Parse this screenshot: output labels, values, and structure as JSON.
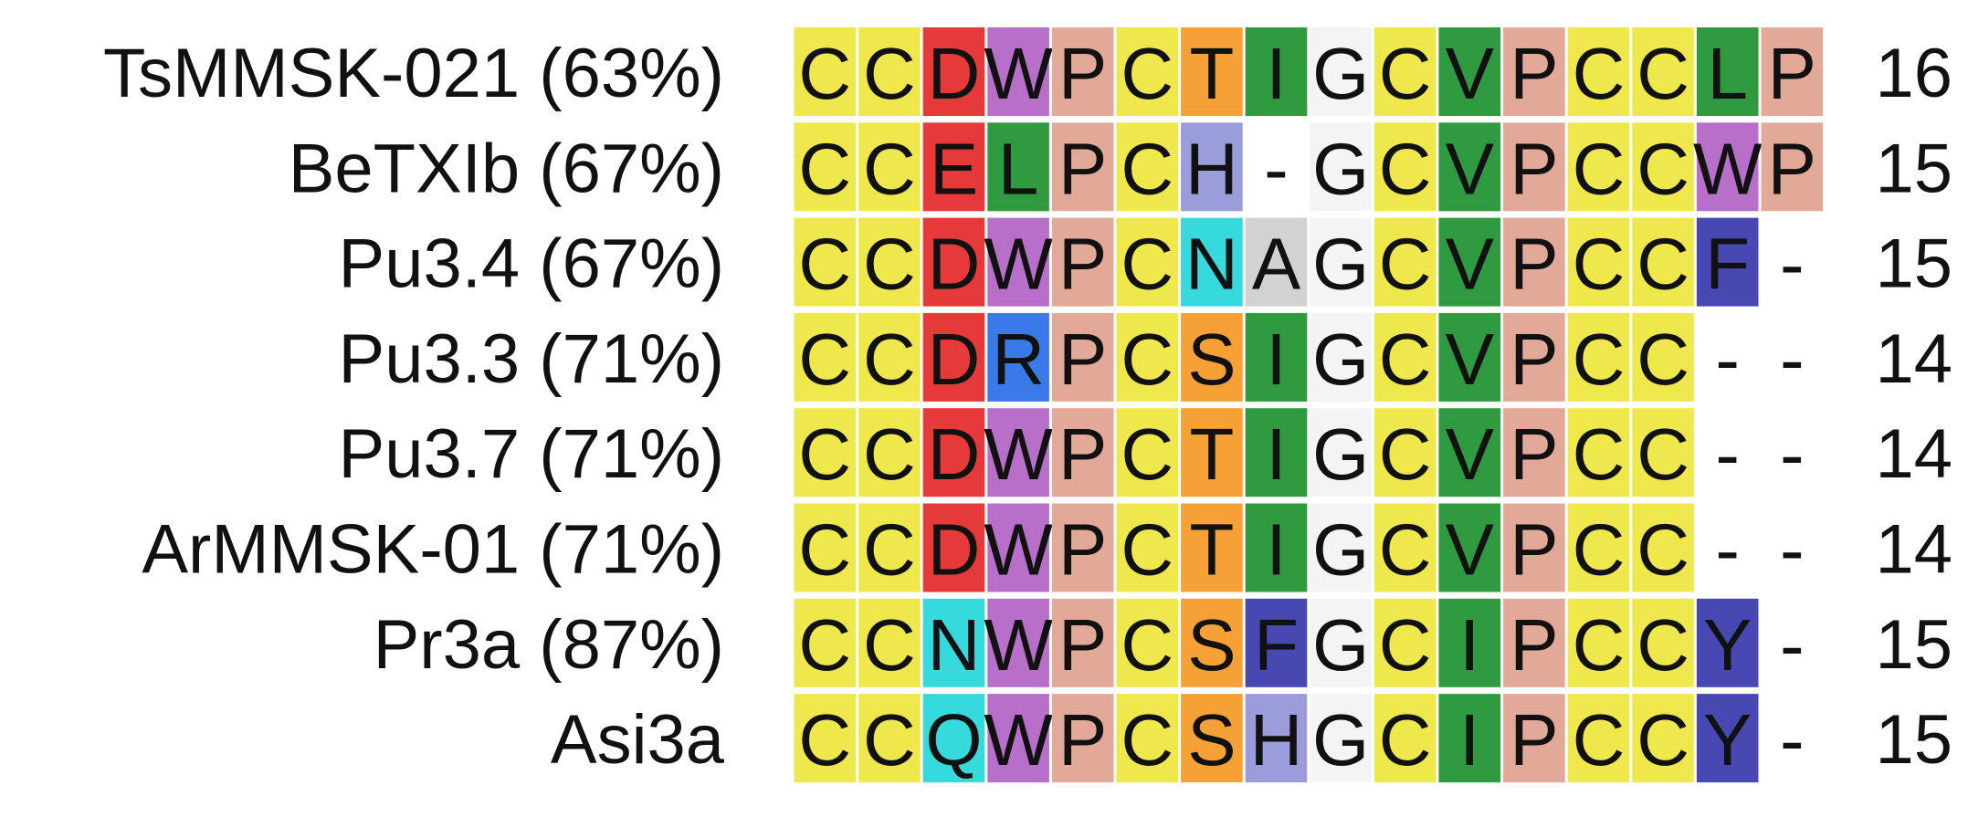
{
  "rows": [
    {
      "label": "TsMMSK-021 (63%)",
      "sequence": [
        "C",
        "C",
        "D",
        "W",
        "P",
        "C",
        "T",
        "I",
        "G",
        "C",
        "V",
        "P",
        "C",
        "C",
        "L",
        "P"
      ],
      "length": 16
    },
    {
      "label": "BeTXIb (67%)",
      "sequence": [
        "C",
        "C",
        "E",
        "L",
        "P",
        "C",
        "H",
        "-",
        "G",
        "C",
        "V",
        "P",
        "C",
        "C",
        "W",
        "P"
      ],
      "length": 15
    },
    {
      "label": "Pu3.4 (67%)",
      "sequence": [
        "C",
        "C",
        "D",
        "W",
        "P",
        "C",
        "N",
        "A",
        "G",
        "C",
        "V",
        "P",
        "C",
        "C",
        "F",
        "-"
      ],
      "length": 15
    },
    {
      "label": "Pu3.3 (71%)",
      "sequence": [
        "C",
        "C",
        "D",
        "R",
        "P",
        "C",
        "S",
        "I",
        "G",
        "C",
        "V",
        "P",
        "C",
        "C",
        "-",
        "-"
      ],
      "length": 14
    },
    {
      "label": "Pu3.7 (71%)",
      "sequence": [
        "C",
        "C",
        "D",
        "W",
        "P",
        "C",
        "T",
        "I",
        "G",
        "C",
        "V",
        "P",
        "C",
        "C",
        "-",
        "-"
      ],
      "length": 14
    },
    {
      "label": "ArMMSK-01 (71%)",
      "sequence": [
        "C",
        "C",
        "D",
        "W",
        "P",
        "C",
        "T",
        "I",
        "G",
        "C",
        "V",
        "P",
        "C",
        "C",
        "-",
        "-"
      ],
      "length": 14
    },
    {
      "label": "Pr3a (87%)",
      "sequence": [
        "C",
        "C",
        "N",
        "W",
        "P",
        "C",
        "S",
        "F",
        "G",
        "C",
        "I",
        "P",
        "C",
        "C",
        "Y",
        "-"
      ],
      "length": 15
    },
    {
      "label": "Asi3a",
      "sequence": [
        "C",
        "C",
        "Q",
        "W",
        "P",
        "C",
        "S",
        "H",
        "G",
        "C",
        "I",
        "P",
        "C",
        "C",
        "Y",
        "-"
      ],
      "length": 15
    }
  ]
}
